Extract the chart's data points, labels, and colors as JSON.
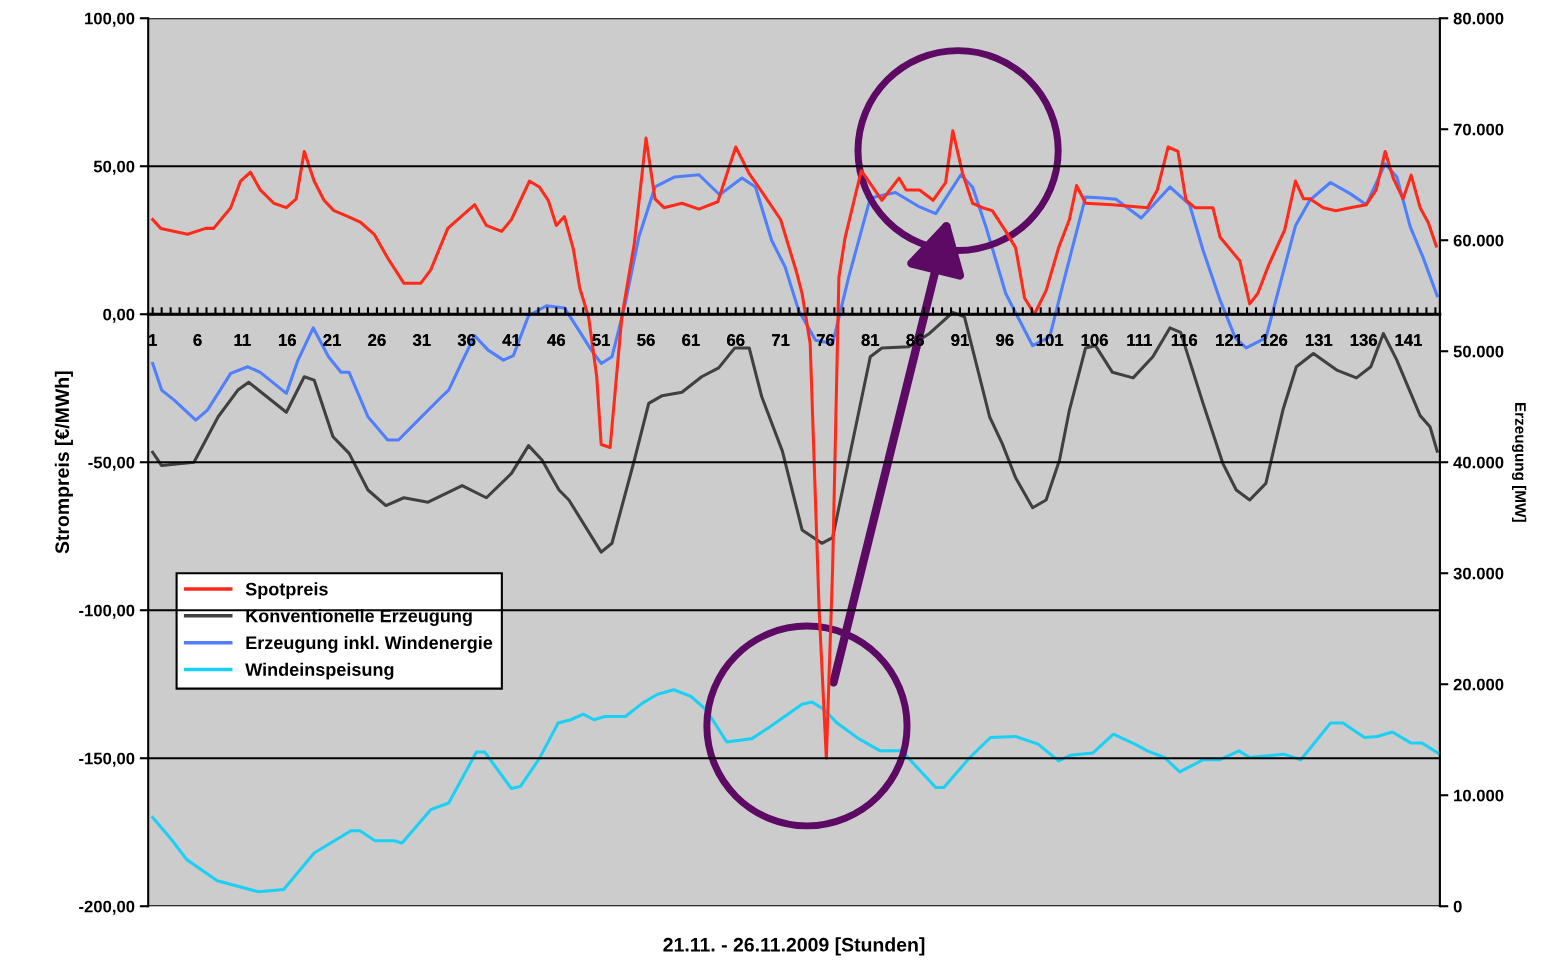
{
  "chart_data": {
    "type": "line",
    "xlabel": "21.11. - 26.11.2009 [Stunden]",
    "ylabel": "Strompreis [€/MWh]",
    "y2label": "Erzeugung [MW]",
    "xlim": [
      0.5,
      144.5
    ],
    "xticks": [
      1,
      {
        "value": 2,
        "label": null
      },
      {
        "value": 3,
        "label": null
      },
      {
        "value": 4,
        "label": null
      },
      {
        "value": 5,
        "label": null
      },
      6,
      {
        "value": 7,
        "label": null
      },
      {
        "value": 8,
        "label": null
      },
      {
        "value": 9,
        "label": null
      },
      {
        "value": 10,
        "label": null
      },
      11,
      {
        "value": 12,
        "label": null
      },
      {
        "value": 13,
        "label": null
      },
      {
        "value": 14,
        "label": null
      },
      {
        "value": 15,
        "label": null
      },
      16,
      {
        "value": 17,
        "label": null
      },
      {
        "value": 18,
        "label": null
      },
      {
        "value": 19,
        "label": null
      },
      {
        "value": 20,
        "label": null
      },
      21,
      {
        "value": 22,
        "label": null
      },
      {
        "value": 23,
        "label": null
      },
      {
        "value": 24,
        "label": null
      },
      {
        "value": 25,
        "label": null
      },
      26,
      {
        "value": 27,
        "label": null
      },
      {
        "value": 28,
        "label": null
      },
      {
        "value": 29,
        "label": null
      },
      {
        "value": 30,
        "label": null
      },
      31,
      {
        "value": 32,
        "label": null
      },
      {
        "value": 33,
        "label": null
      },
      {
        "value": 34,
        "label": null
      },
      {
        "value": 35,
        "label": null
      },
      36,
      {
        "value": 37,
        "label": null
      },
      {
        "value": 38,
        "label": null
      },
      {
        "value": 39,
        "label": null
      },
      {
        "value": 40,
        "label": null
      },
      41,
      {
        "value": 42,
        "label": null
      },
      {
        "value": 43,
        "label": null
      },
      {
        "value": 44,
        "label": null
      },
      {
        "value": 45,
        "label": null
      },
      46,
      {
        "value": 47,
        "label": null
      },
      {
        "value": 48,
        "label": null
      },
      {
        "value": 49,
        "label": null
      },
      {
        "value": 50,
        "label": null
      },
      51,
      {
        "value": 52,
        "label": null
      },
      {
        "value": 53,
        "label": null
      },
      {
        "value": 54,
        "label": null
      },
      {
        "value": 55,
        "label": null
      },
      56,
      {
        "value": 57,
        "label": null
      },
      {
        "value": 58,
        "label": null
      },
      {
        "value": 59,
        "label": null
      },
      {
        "value": 60,
        "label": null
      },
      61,
      {
        "value": 62,
        "label": null
      },
      {
        "value": 63,
        "label": null
      },
      {
        "value": 64,
        "label": null
      },
      {
        "value": 65,
        "label": null
      },
      66,
      {
        "value": 67,
        "label": null
      },
      {
        "value": 68,
        "label": null
      },
      {
        "value": 69,
        "label": null
      },
      {
        "value": 70,
        "label": null
      },
      71,
      {
        "value": 72,
        "label": null
      },
      {
        "value": 73,
        "label": null
      },
      {
        "value": 74,
        "label": null
      },
      {
        "value": 75,
        "label": null
      },
      76,
      {
        "value": 77,
        "label": null
      },
      {
        "value": 78,
        "label": null
      },
      {
        "value": 79,
        "label": null
      },
      {
        "value": 80,
        "label": null
      },
      81,
      {
        "value": 82,
        "label": null
      },
      {
        "value": 83,
        "label": null
      },
      {
        "value": 84,
        "label": null
      },
      {
        "value": 85,
        "label": null
      },
      86,
      {
        "value": 87,
        "label": null
      },
      {
        "value": 88,
        "label": null
      },
      {
        "value": 89,
        "label": null
      },
      {
        "value": 90,
        "label": null
      },
      91,
      {
        "value": 92,
        "label": null
      },
      {
        "value": 93,
        "label": null
      },
      {
        "value": 94,
        "label": null
      },
      {
        "value": 95,
        "label": null
      },
      96,
      {
        "value": 97,
        "label": null
      },
      {
        "value": 98,
        "label": null
      },
      {
        "value": 99,
        "label": null
      },
      {
        "value": 100,
        "label": null
      },
      101,
      {
        "value": 102,
        "label": null
      },
      {
        "value": 103,
        "label": null
      },
      {
        "value": 104,
        "label": null
      },
      {
        "value": 105,
        "label": null
      },
      106,
      {
        "value": 107,
        "label": null
      },
      {
        "value": 108,
        "label": null
      },
      {
        "value": 109,
        "label": null
      },
      {
        "value": 110,
        "label": null
      },
      111,
      {
        "value": 112,
        "label": null
      },
      {
        "value": 113,
        "label": null
      },
      {
        "value": 114,
        "label": null
      },
      {
        "value": 115,
        "label": null
      },
      116,
      {
        "value": 117,
        "label": null
      },
      {
        "value": 118,
        "label": null
      },
      {
        "value": 119,
        "label": null
      },
      {
        "value": 120,
        "label": null
      },
      121,
      {
        "value": 122,
        "label": null
      },
      {
        "value": 123,
        "label": null
      },
      {
        "value": 124,
        "label": null
      },
      {
        "value": 125,
        "label": null
      },
      126,
      {
        "value": 127,
        "label": null
      },
      {
        "value": 128,
        "label": null
      },
      {
        "value": 129,
        "label": null
      },
      {
        "value": 130,
        "label": null
      },
      131,
      {
        "value": 132,
        "label": null
      },
      {
        "value": 133,
        "label": null
      },
      {
        "value": 134,
        "label": null
      },
      {
        "value": 135,
        "label": null
      },
      136,
      {
        "value": 137,
        "label": null
      },
      {
        "value": 138,
        "label": null
      },
      {
        "value": 139,
        "label": null
      },
      {
        "value": 140,
        "label": null
      },
      141,
      {
        "value": 142,
        "label": null
      },
      {
        "value": 143,
        "label": null
      },
      {
        "value": 144,
        "label": null
      }
    ],
    "ylim": [
      -200,
      100
    ],
    "yticks": [
      {
        "value": -200,
        "label": "-200,00"
      },
      {
        "value": -150,
        "label": "-150,00"
      },
      {
        "value": -100,
        "label": "-100,00"
      },
      {
        "value": -50,
        "label": "-50,00"
      },
      {
        "value": 0,
        "label": "0,00"
      },
      {
        "value": 50,
        "label": "50,00"
      },
      {
        "value": 100,
        "label": "100,00"
      }
    ],
    "y2lim": [
      0,
      80000
    ],
    "y2ticks": [
      0,
      {
        "value": 10000,
        "label": "10.000"
      },
      {
        "value": 20000,
        "label": "20.000"
      },
      {
        "value": 30000,
        "label": "30.000"
      },
      {
        "value": 40000,
        "label": "40.000"
      },
      {
        "value": 50000,
        "label": "50.000"
      },
      {
        "value": 60000,
        "label": "60.000"
      },
      {
        "value": 70000,
        "label": "70.000"
      },
      {
        "value": 80000,
        "label": "80.000"
      }
    ],
    "grid": "y",
    "legend": "left",
    "marker": "none",
    "line_style": "solid",
    "series": [
      {
        "name": "Spotpreis",
        "color": "#ff2a1a",
        "x": [
          1,
          1.9,
          4.9,
          6.9,
          7.8,
          9.7,
          10.8,
          11.9,
          13,
          14.5,
          15.9,
          17,
          17.9,
          19,
          20.1,
          21.2,
          22.8,
          24.2,
          25.7,
          27.2,
          29,
          30.9,
          32,
          33.9,
          35,
          36.9,
          38.2,
          39.9,
          41,
          43,
          44.1,
          45.1,
          46,
          46.9,
          47.9,
          48.6,
          49.6,
          50.5,
          51,
          52,
          53.3,
          54.7,
          56,
          57,
          58,
          60,
          61.9,
          64,
          66,
          67.5,
          69,
          71,
          72.8,
          73.4,
          74.3,
          75.3,
          76.1,
          76.8,
          77.5,
          78.2,
          80,
          82.3,
          84.2,
          85,
          86.5,
          88,
          89.4,
          90.2,
          91.3,
          92.4,
          93.5,
          94.6,
          96,
          97.2,
          98.2,
          99.3,
          100.6,
          102,
          103.2,
          104,
          105,
          108,
          111.9,
          113,
          114.2,
          115.3,
          116.2,
          117.2,
          119.2,
          120,
          122.2,
          123.3,
          124.2,
          125.4,
          127.2,
          128.4,
          129.3,
          130,
          131.5,
          132.9,
          134.5,
          136.3,
          137.4,
          138.4,
          139.3,
          140.4,
          141.3,
          142.3,
          143.2,
          144.1
        ],
        "values": [
          32,
          29,
          27,
          29,
          29,
          36,
          45,
          48,
          42,
          37.5,
          36,
          39,
          55,
          45,
          38.5,
          35,
          33,
          31,
          27,
          19,
          10.5,
          10.5,
          15,
          29,
          32,
          37,
          30,
          28,
          32,
          45,
          43,
          38.5,
          30,
          33,
          22,
          9,
          -1,
          -21,
          -44,
          -45,
          -1,
          24,
          59.5,
          39,
          36,
          37.5,
          35.5,
          38,
          56.5,
          47.5,
          41,
          32,
          14,
          7,
          -10,
          -100,
          -150,
          -86,
          12.5,
          26,
          48.5,
          38.5,
          46,
          42,
          42,
          38.5,
          44.5,
          62,
          47.5,
          37.5,
          36,
          35,
          28.5,
          22.5,
          5.5,
          0,
          8,
          22.5,
          32,
          43.5,
          37.5,
          37,
          36,
          42,
          56.5,
          55,
          38.5,
          36,
          36,
          26,
          18,
          3.5,
          7,
          16.5,
          28.5,
          45,
          39,
          39,
          36,
          35,
          36,
          37,
          42,
          55,
          46,
          39,
          47,
          36,
          31,
          23
        ]
      },
      {
        "name": "Konventionelle Erzeugung",
        "color": "#404040",
        "axis": "y2",
        "x": [
          1,
          2,
          5.6,
          8.3,
          10.5,
          11.7,
          15.9,
          17.9,
          19,
          21.1,
          22.9,
          25,
          27,
          29,
          31.7,
          35.5,
          38.2,
          41,
          42.9,
          44.4,
          46.3,
          47.4,
          51,
          52.2,
          54.7,
          56.3,
          57.8,
          60,
          62.2,
          64.1,
          65.9,
          67.5,
          68.9,
          71.2,
          73.4,
          75.6,
          76.8,
          78.6,
          81,
          82.3,
          85.3,
          87.6,
          90.2,
          91.5,
          94.3,
          95.7,
          97.2,
          99.1,
          100.6,
          102.1,
          103.2,
          105,
          106.1,
          108,
          110.3,
          112.5,
          114.4,
          115.6,
          118.1,
          120.3,
          121.8,
          123.3,
          125.1,
          127,
          128.5,
          130.4,
          133,
          135.2,
          136.8,
          138.2,
          139.7,
          142.3,
          143.4,
          144.2
        ],
        "values": [
          40900,
          39700,
          40000,
          44100,
          46500,
          47200,
          44500,
          47700,
          47400,
          42300,
          40800,
          37500,
          36100,
          36800,
          36400,
          37900,
          36800,
          39000,
          41500,
          40200,
          37500,
          36600,
          31900,
          32700,
          40200,
          45300,
          46000,
          46300,
          47700,
          48500,
          50300,
          50300,
          45900,
          41000,
          33900,
          32700,
          33200,
          40200,
          49500,
          50300,
          50400,
          51600,
          53500,
          53100,
          44100,
          41700,
          38600,
          35900,
          36600,
          40200,
          44700,
          50300,
          50500,
          48100,
          47600,
          49500,
          52100,
          51700,
          45300,
          39900,
          37500,
          36600,
          38100,
          44700,
          48600,
          49800,
          48300,
          47600,
          48600,
          51600,
          49200,
          44200,
          43200,
          41000
        ]
      },
      {
        "name": "Erzeugung inkl. Windenergie",
        "color": "#4f7fff",
        "axis": "y2",
        "x": [
          1,
          2,
          3.4,
          5.8,
          7.1,
          9.7,
          11.6,
          13,
          15.9,
          17.2,
          18.9,
          20.6,
          22,
          22.9,
          25,
          27.2,
          28.4,
          30.6,
          33.2,
          34,
          35.4,
          36.9,
          38.4,
          40.1,
          41.2,
          42.9,
          44.9,
          46.9,
          48.5,
          49.9,
          51,
          52.2,
          53.6,
          55.2,
          57,
          59.2,
          61.9,
          64.2,
          66.7,
          68.2,
          70,
          71.5,
          73,
          74.9,
          76.8,
          78.6,
          81,
          83.8,
          86.5,
          88.3,
          91.1,
          92.4,
          93.9,
          96.1,
          99.1,
          101,
          102.5,
          105,
          106.9,
          108.4,
          111.2,
          114.4,
          116.6,
          118.1,
          120,
          121.7,
          122.9,
          125.1,
          126.7,
          128.4,
          130,
          132.3,
          134.5,
          136.3,
          138.4,
          139.7,
          141.2,
          142.6,
          144.2
        ],
        "values": [
          48900,
          46500,
          45600,
          43800,
          44700,
          48000,
          48600,
          48100,
          46200,
          49200,
          52100,
          49500,
          48100,
          48100,
          44100,
          42000,
          42000,
          43800,
          45900,
          46500,
          48900,
          51400,
          50100,
          49200,
          49600,
          53200,
          54100,
          53900,
          51900,
          50100,
          48900,
          49500,
          54000,
          60300,
          64800,
          65700,
          65900,
          64100,
          65600,
          64800,
          60000,
          57600,
          53700,
          51000,
          50700,
          56700,
          63800,
          64300,
          63000,
          62400,
          65900,
          64800,
          61200,
          55200,
          50500,
          51300,
          56100,
          63900,
          63800,
          63700,
          62000,
          64800,
          63200,
          59100,
          54600,
          51200,
          50300,
          51200,
          56100,
          61300,
          63600,
          65200,
          64200,
          63200,
          66900,
          65700,
          61200,
          58500,
          55000
        ]
      },
      {
        "name": "Windeinspeisung",
        "color": "#1ad0f5",
        "axis": "y2",
        "x": [
          1,
          3,
          4.8,
          8.2,
          12.8,
          15.6,
          19,
          23.1,
          24.1,
          25.8,
          27.9,
          28.8,
          32,
          34,
          37.1,
          38,
          41,
          42,
          44.1,
          46.2,
          47.6,
          49,
          50.2,
          51.4,
          53.7,
          55.6,
          57.3,
          59.1,
          61,
          62.7,
          65,
          67.8,
          69.7,
          73.4,
          74.5,
          75.9,
          77.3,
          79.7,
          82.1,
          84.5,
          88.3,
          89.2,
          92.1,
          94.4,
          97.2,
          99.7,
          102,
          103.3,
          105.8,
          108.1,
          110.5,
          111.9,
          113.8,
          115.5,
          118.1,
          120,
          122.1,
          123.3,
          127.1,
          129,
          132.3,
          133.7,
          136.1,
          137.5,
          139.2,
          141.3,
          142.5,
          144.3
        ],
        "values": [
          8000,
          6100,
          4200,
          2300,
          1300,
          1500,
          4800,
          6800,
          6800,
          5900,
          5900,
          5700,
          8700,
          9300,
          13900,
          13900,
          10600,
          10800,
          13300,
          16500,
          16800,
          17300,
          16800,
          17100,
          17100,
          18300,
          19100,
          19500,
          18900,
          17700,
          14800,
          15100,
          16100,
          18200,
          18400,
          17700,
          16500,
          15100,
          14000,
          14000,
          10700,
          10700,
          13400,
          15200,
          15300,
          14600,
          13100,
          13600,
          13800,
          15500,
          14600,
          14000,
          13400,
          12100,
          13200,
          13200,
          14000,
          13400,
          13700,
          13200,
          16500,
          16500,
          15200,
          15300,
          15700,
          14700,
          14700,
          13800
        ]
      }
    ]
  }
}
